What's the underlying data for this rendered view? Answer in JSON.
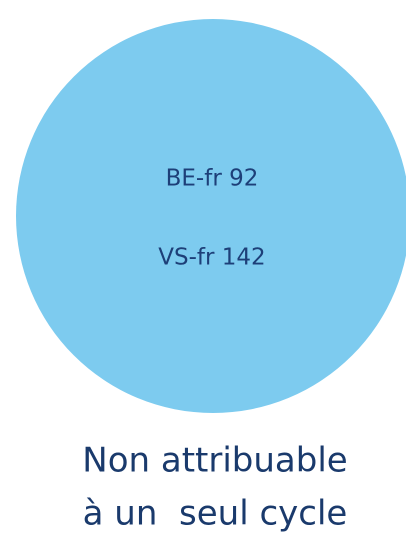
{
  "circle": {
    "lines": [
      "BE-fr 92",
      "VS-fr 142"
    ]
  },
  "caption": {
    "lines": [
      "Non attribuable",
      "à un  seul cycle"
    ]
  }
}
